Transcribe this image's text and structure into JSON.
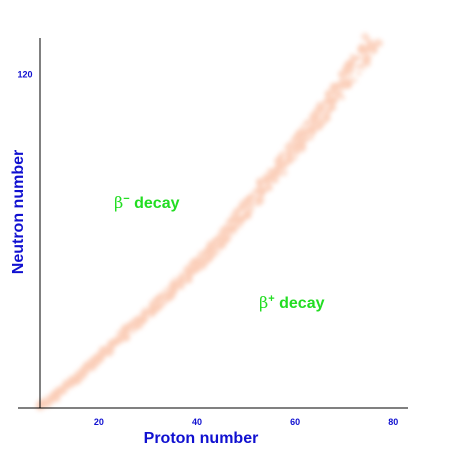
{
  "chart_data": {
    "type": "area",
    "title": "",
    "xlabel": "Proton number",
    "ylabel": "Neutron number",
    "xlim": [
      8,
      83
    ],
    "ylim": [
      1,
      133
    ],
    "x_ticks": [
      20,
      40,
      60,
      80
    ],
    "y_ticks": [
      120
    ],
    "band_color": "#f7a47c",
    "axis_label_color": "#1010d0",
    "region_label_color": "#22dd22",
    "series": [
      {
        "x": [
          8,
          15,
          20,
          25,
          30,
          35,
          40,
          45,
          50,
          55,
          60,
          65,
          70,
          74,
          76
        ],
        "y": [
          1,
          11,
          19,
          27,
          35,
          43,
          52,
          61,
          72,
          83,
          94,
          105,
          117,
          127,
          133
        ]
      }
    ],
    "annotations": [
      {
        "greek": "β",
        "sup": "−",
        "text": " decay"
      },
      {
        "greek": "β",
        "sup": "+",
        "text": " decay"
      }
    ]
  }
}
